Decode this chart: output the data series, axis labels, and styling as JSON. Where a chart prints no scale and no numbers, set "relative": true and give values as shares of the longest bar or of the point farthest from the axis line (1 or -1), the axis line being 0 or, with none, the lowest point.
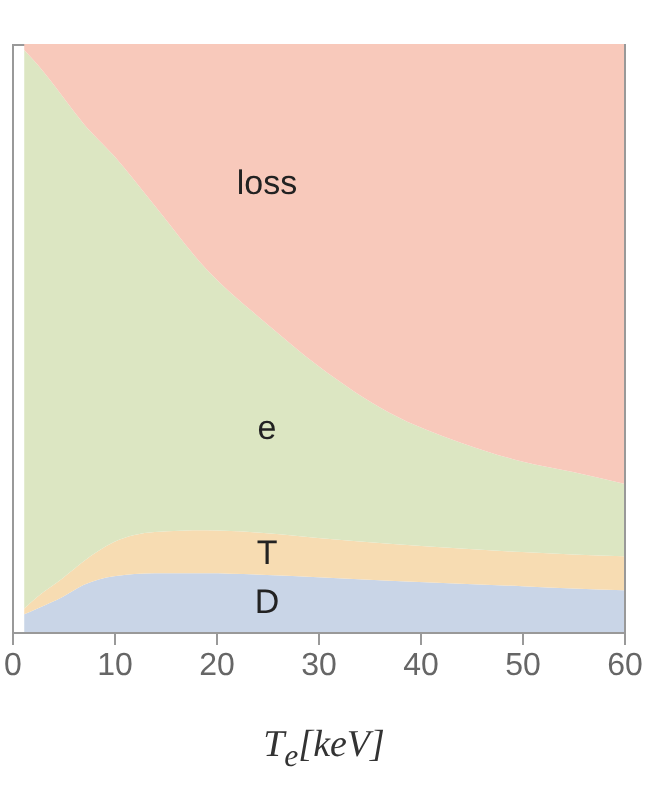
{
  "chart_data": {
    "type": "area",
    "stacked": true,
    "relative": true,
    "xlabel": "T$_{e}$[keV]",
    "xlim": [
      0,
      60
    ],
    "xticks": [
      0,
      10,
      20,
      30,
      40,
      50,
      60
    ],
    "grid": false,
    "legend": false,
    "x": [
      1.2,
      2.5,
      5,
      7,
      10,
      14,
      19,
      25,
      30,
      37,
      44,
      50,
      55,
      60
    ],
    "series": [
      {
        "name": "D",
        "color": "#c9d5e7",
        "values": [
          0.03,
          0.04,
          0.06,
          0.08,
          0.095,
          0.1,
          0.1,
          0.097,
          0.093,
          0.087,
          0.082,
          0.078,
          0.074,
          0.071
        ]
      },
      {
        "name": "T",
        "color": "#f7dcb2",
        "values": [
          0.01,
          0.02,
          0.032,
          0.04,
          0.058,
          0.07,
          0.073,
          0.071,
          0.067,
          0.063,
          0.06,
          0.058,
          0.058,
          0.058
        ]
      },
      {
        "name": "e",
        "color": "#dce6c2",
        "values": [
          0.95,
          0.905,
          0.818,
          0.745,
          0.657,
          0.555,
          0.445,
          0.356,
          0.293,
          0.223,
          0.18,
          0.154,
          0.14,
          0.123
        ]
      },
      {
        "name": "loss",
        "color": "#f8c9bb",
        "values": [
          0.01,
          0.035,
          0.09,
          0.135,
          0.19,
          0.275,
          0.382,
          0.476,
          0.547,
          0.627,
          0.678,
          0.71,
          0.728,
          0.748
        ]
      }
    ]
  }
}
